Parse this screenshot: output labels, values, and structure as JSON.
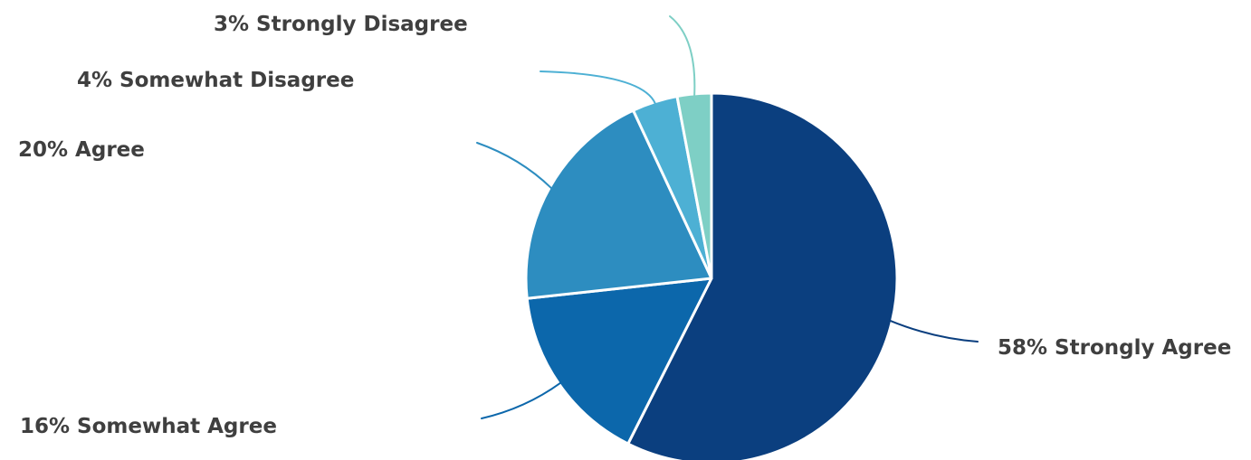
{
  "chart_data": {
    "type": "pie",
    "start_angle_deg": 0,
    "direction": "clockwise",
    "slices": [
      {
        "label": "Strongly Agree",
        "value": 58,
        "display": "58% Strongly Agree",
        "color": "#0b3f7f"
      },
      {
        "label": "Somewhat Agree",
        "value": 16,
        "display": "16% Somewhat Agree",
        "color": "#0c67ab"
      },
      {
        "label": "Agree",
        "value": 20,
        "display": "20% Agree",
        "color": "#2d8dc0"
      },
      {
        "label": "Somewhat Disagree",
        "value": 4,
        "display": "4% Somewhat Disagree",
        "color": "#4db0d4"
      },
      {
        "label": "Strongly Disagree",
        "value": 3,
        "display": "3% Strongly Disagree",
        "color": "#7ecfc5"
      }
    ]
  }
}
